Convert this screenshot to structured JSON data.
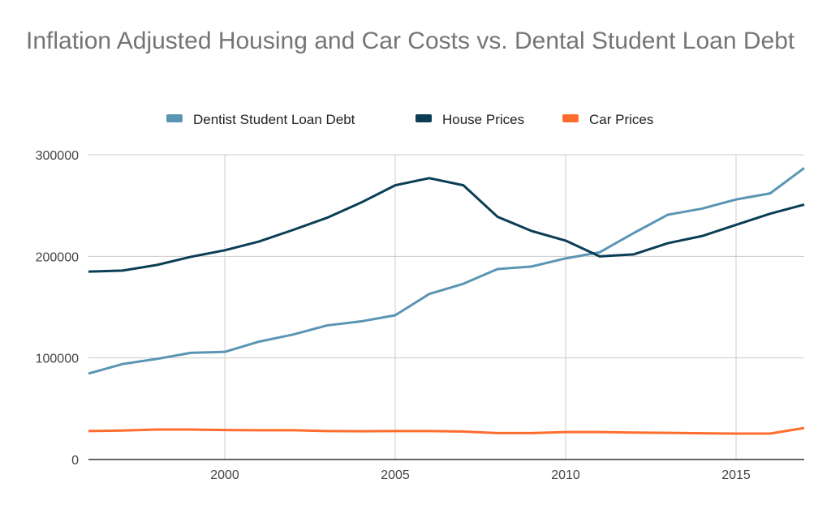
{
  "chart_data": {
    "type": "line",
    "title": "Inflation Adjusted Housing and Car Costs vs. Dental Student Loan Debt",
    "xlabel": "",
    "ylabel": "",
    "x": [
      1996,
      1997,
      1998,
      1999,
      2000,
      2001,
      2002,
      2003,
      2004,
      2005,
      2006,
      2007,
      2008,
      2009,
      2010,
      2011,
      2012,
      2013,
      2014,
      2015,
      2016,
      2017
    ],
    "xlim": [
      1996,
      2017
    ],
    "ylim": [
      0,
      300000
    ],
    "xticks": [
      "2000",
      "2005",
      "2010",
      "2015"
    ],
    "yticks": [
      "0",
      "100000",
      "200000",
      "300000"
    ],
    "grid": true,
    "legend_position": "top",
    "series": [
      {
        "name": "Dentist Student Loan Debt",
        "color": "#5b95b4",
        "values": [
          84600,
          94000,
          99000,
          105000,
          106000,
          116000,
          123000,
          132000,
          136000,
          142000,
          163000,
          173000,
          187500,
          190000,
          198000,
          204000,
          223000,
          241000,
          247000,
          256000,
          262000,
          287000
        ]
      },
      {
        "name": "House Prices",
        "color": "#0b3e56",
        "values": [
          185000,
          186000,
          191500,
          199500,
          206000,
          214600,
          226000,
          238000,
          253000,
          270000,
          277000,
          270000,
          239000,
          225000,
          215500,
          200000,
          202000,
          213000,
          220000,
          231000,
          242000,
          251000
        ]
      },
      {
        "name": "Car Prices",
        "color": "#ff6d2e",
        "values": [
          28000,
          28500,
          29500,
          29500,
          29000,
          28800,
          28800,
          28000,
          27800,
          28000,
          28000,
          27500,
          26000,
          26000,
          27000,
          27000,
          26500,
          26200,
          25800,
          25500,
          25500,
          31000
        ]
      }
    ]
  }
}
